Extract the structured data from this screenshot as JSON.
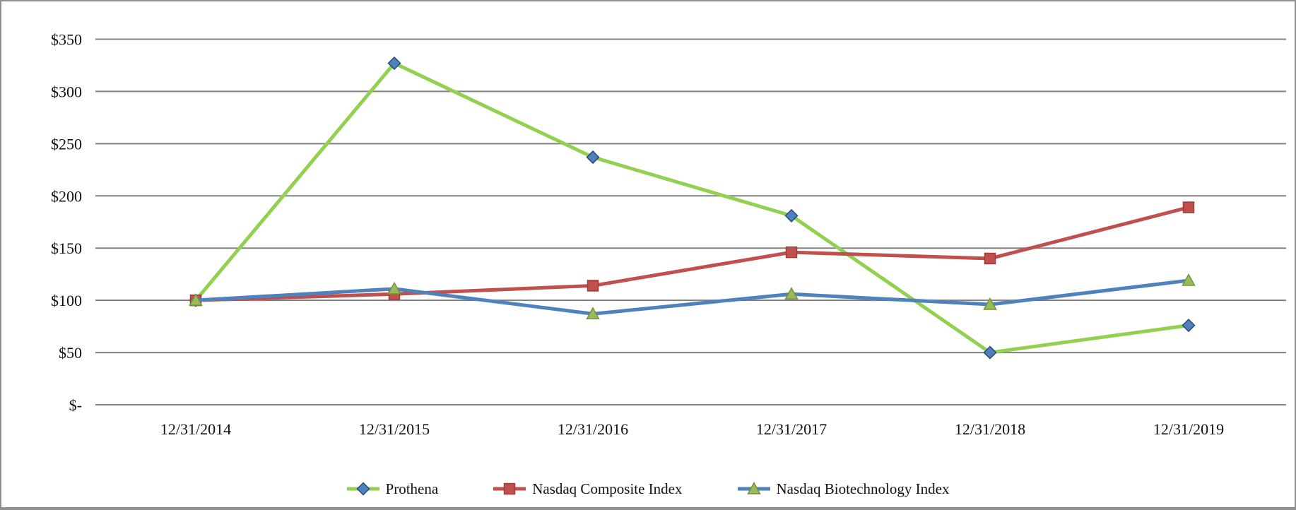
{
  "chart_data": {
    "type": "line",
    "title": "",
    "x_categories": [
      "12/31/2014",
      "12/31/2015",
      "12/31/2016",
      "12/31/2017",
      "12/31/2018",
      "12/31/2019"
    ],
    "y_ticks": [
      {
        "value": 350,
        "label": "$350"
      },
      {
        "value": 300,
        "label": "$300"
      },
      {
        "value": 250,
        "label": "$250"
      },
      {
        "value": 200,
        "label": "$200"
      },
      {
        "value": 150,
        "label": "$150"
      },
      {
        "value": 100,
        "label": "$100"
      },
      {
        "value": 50,
        "label": "$50"
      },
      {
        "value": 0,
        "label": "$-"
      }
    ],
    "ylim": [
      0,
      350
    ],
    "grid": true,
    "legend_position": "bottom-center",
    "colors": {
      "background": "#FFFFFF",
      "gridline": "#808080",
      "frame": "#8F8F8F",
      "text": "#111111"
    },
    "series": [
      {
        "name": "Prothena",
        "values": [
          100,
          327,
          237,
          181,
          50,
          76
        ],
        "line_color": "#92D050",
        "marker": "diamond",
        "marker_fill": "#4F81BD",
        "marker_stroke": "#28497A"
      },
      {
        "name": "Nasdaq Composite Index",
        "values": [
          100,
          106,
          114,
          146,
          140,
          189
        ],
        "line_color": "#C0504D",
        "marker": "square",
        "marker_fill": "#C0504D",
        "marker_stroke": "#9E3D3B"
      },
      {
        "name": "Nasdaq Biotechnology Index",
        "values": [
          100,
          111,
          87,
          106,
          96,
          119
        ],
        "line_color": "#4F81BD",
        "marker": "triangle",
        "marker_fill": "#9BBB59",
        "marker_stroke": "#77933C"
      }
    ]
  }
}
